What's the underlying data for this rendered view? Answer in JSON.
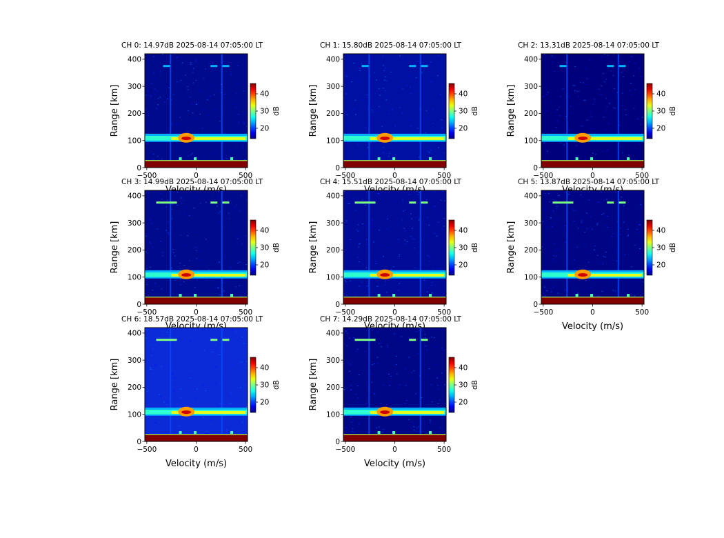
{
  "chart_data": {
    "type": "heatmap",
    "figure": "Range-Doppler spectra, 8 channels",
    "xlabel": "Velocity (m/s)",
    "ylabel": "Range [km]",
    "xlim": [
      -520,
      520
    ],
    "ylim": [
      0,
      420
    ],
    "xticks": [
      -500,
      0,
      500
    ],
    "xtick_labels": [
      "−500",
      "0",
      "500"
    ],
    "yticks": [
      0,
      100,
      200,
      300,
      400
    ],
    "colormap": "jet",
    "colorbar": {
      "label": "dB",
      "min": 14,
      "max": 46,
      "ticks": [
        20,
        30,
        40
      ]
    },
    "features": {
      "ionospheric_echo_range_km": [
        95,
        125
      ],
      "ionospheric_echo_peak_velocity_ms": -100,
      "near_range_band_km": [
        0,
        25
      ],
      "faint_echo_range_km": 375,
      "faint_echo_velocities_ms": [
        -300,
        180,
        300
      ],
      "vertical_stripe_velocities_ms": [
        -260,
        260
      ]
    },
    "panels": [
      {
        "channel": 0,
        "title": "CH 0: 14.97dB 2025-08-14 07:05:00 LT",
        "noise_db": 14.97,
        "show_xlabel": false,
        "background": "#000a8c"
      },
      {
        "channel": 1,
        "title": "CH 1: 15.80dB 2025-08-14 07:05:00 LT",
        "noise_db": 15.8,
        "show_xlabel": false,
        "background": "#0010a2"
      },
      {
        "channel": 2,
        "title": "CH 2: 13.31dB 2025-08-14 07:05:00 LT",
        "noise_db": 13.31,
        "show_xlabel": false,
        "background": "#00007c"
      },
      {
        "channel": 3,
        "title": "CH 3: 14.99dB 2025-08-14 07:05:00 LT",
        "noise_db": 14.99,
        "show_xlabel": false,
        "background": "#000a8c"
      },
      {
        "channel": 4,
        "title": "CH 4: 15.51dB 2025-08-14 07:05:00 LT",
        "noise_db": 15.51,
        "show_xlabel": false,
        "background": "#000c98"
      },
      {
        "channel": 5,
        "title": "CH 5: 13.87dB 2025-08-14 07:05:00 LT",
        "noise_db": 13.87,
        "show_xlabel": true,
        "background": "#000585"
      },
      {
        "channel": 6,
        "title": "CH 6: 18.57dB 2025-08-14 07:05:00 LT",
        "noise_db": 18.57,
        "show_xlabel": true,
        "background": "#0b2ad8"
      },
      {
        "channel": 7,
        "title": "CH 7: 14.29dB 2025-08-14 07:05:00 LT",
        "noise_db": 14.29,
        "show_xlabel": true,
        "background": "#000786"
      }
    ]
  }
}
